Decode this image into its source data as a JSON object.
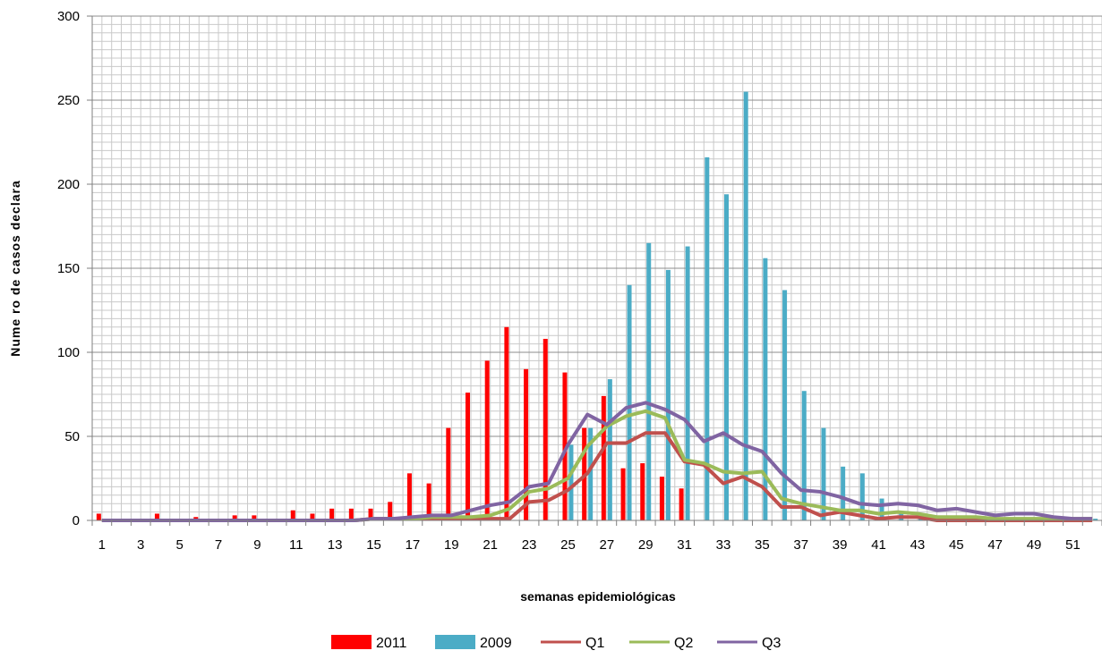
{
  "chart_data": {
    "type": "bar",
    "xlabel": "semanas epidemiológicas",
    "ylabel": "Nume ro de casos declara",
    "ylim": [
      0,
      300
    ],
    "yticks": [
      0,
      50,
      100,
      150,
      200,
      250,
      300
    ],
    "x_tick_labels": [
      "1",
      "3",
      "5",
      "7",
      "9",
      "11",
      "13",
      "15",
      "17",
      "19",
      "21",
      "23",
      "25",
      "27",
      "29",
      "31",
      "33",
      "35",
      "37",
      "39",
      "41",
      "43",
      "45",
      "47",
      "49",
      "51"
    ],
    "grid": true,
    "legend_position": "bottom",
    "weeks": [
      1,
      2,
      3,
      4,
      5,
      6,
      7,
      8,
      9,
      10,
      11,
      12,
      13,
      14,
      15,
      16,
      17,
      18,
      19,
      20,
      21,
      22,
      23,
      24,
      25,
      26,
      27,
      28,
      29,
      30,
      31,
      32,
      33,
      34,
      35,
      36,
      37,
      38,
      39,
      40,
      41,
      42,
      43,
      44,
      45,
      46,
      47,
      48,
      49,
      50,
      51,
      52
    ],
    "series": [
      {
        "name": "2011",
        "kind": "bar",
        "color": "#ff0000",
        "values": [
          4,
          0,
          0,
          4,
          0,
          2,
          0,
          3,
          3,
          0,
          6,
          4,
          7,
          7,
          7,
          11,
          28,
          22,
          55,
          76,
          95,
          115,
          90,
          108,
          88,
          55,
          74,
          31,
          34,
          26,
          19,
          0,
          0,
          0,
          0,
          0,
          0,
          0,
          0,
          0,
          0,
          0,
          0,
          0,
          0,
          0,
          0,
          0,
          0,
          0,
          0,
          0
        ]
      },
      {
        "name": "2009",
        "kind": "bar",
        "color": "#4bacc6",
        "values": [
          0,
          0,
          0,
          0,
          0,
          0,
          0,
          0,
          0,
          0,
          0,
          0,
          0,
          0,
          0,
          0,
          0,
          0,
          0,
          0,
          0,
          0,
          0,
          0,
          45,
          55,
          84,
          140,
          165,
          149,
          163,
          216,
          194,
          255,
          156,
          137,
          77,
          55,
          32,
          28,
          13,
          5,
          2,
          1,
          1,
          1,
          1,
          1,
          1,
          1,
          1,
          1
        ]
      },
      {
        "name": "Q1",
        "kind": "line",
        "color": "#c0504d",
        "values": [
          0,
          0,
          0,
          0,
          0,
          0,
          0,
          0,
          0,
          0,
          0,
          0,
          0,
          0,
          1,
          1,
          1,
          1,
          1,
          1,
          1,
          1,
          11,
          12,
          18,
          28,
          46,
          46,
          52,
          52,
          35,
          33,
          22,
          26,
          20,
          8,
          8,
          3,
          5,
          3,
          1,
          2,
          2,
          0,
          0,
          0,
          0,
          0,
          0,
          0,
          0,
          0
        ]
      },
      {
        "name": "Q2",
        "kind": "line",
        "color": "#9bbb59",
        "values": [
          0,
          0,
          0,
          0,
          0,
          0,
          0,
          0,
          0,
          0,
          0,
          0,
          0,
          0,
          1,
          1,
          1,
          2,
          2,
          2,
          3,
          7,
          17,
          19,
          25,
          44,
          56,
          62,
          65,
          61,
          36,
          34,
          29,
          28,
          29,
          13,
          10,
          8,
          6,
          6,
          4,
          5,
          4,
          2,
          2,
          2,
          1,
          1,
          1,
          1,
          1,
          1
        ]
      },
      {
        "name": "Q3",
        "kind": "line",
        "color": "#8064a2",
        "values": [
          0,
          0,
          0,
          0,
          0,
          0,
          0,
          0,
          0,
          0,
          0,
          0,
          0,
          0,
          1,
          1,
          2,
          3,
          3,
          6,
          9,
          11,
          20,
          22,
          45,
          63,
          57,
          67,
          70,
          66,
          60,
          47,
          52,
          45,
          41,
          28,
          18,
          17,
          14,
          10,
          9,
          10,
          9,
          6,
          7,
          5,
          3,
          4,
          4,
          2,
          1,
          1
        ]
      }
    ]
  }
}
